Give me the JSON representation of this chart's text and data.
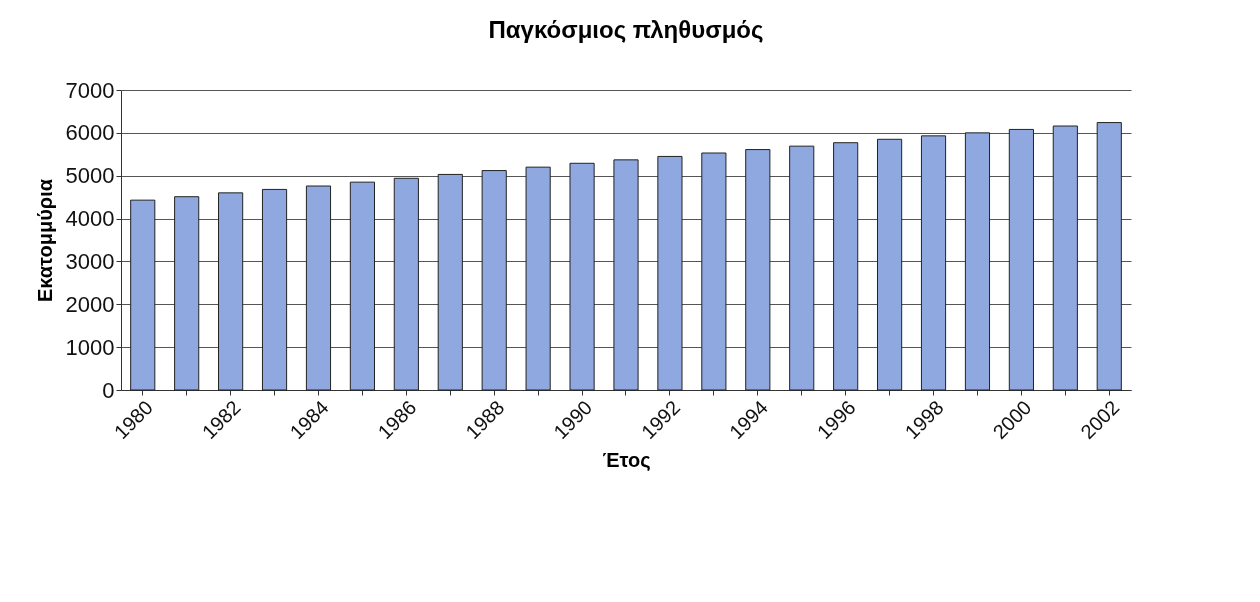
{
  "chart_data": {
    "type": "bar",
    "title": "Παγκόσμιος πληθυσμός",
    "xlabel": "Έτος",
    "ylabel": "Εκατομμύρια",
    "categories": [
      "1980",
      null,
      "1982",
      null,
      "1984",
      null,
      "1986",
      null,
      "1988",
      null,
      "1990",
      null,
      "1992",
      null,
      "1994",
      null,
      "1996",
      null,
      "1998",
      null,
      "2000",
      null,
      "2002"
    ],
    "values": [
      4430,
      4510,
      4600,
      4680,
      4760,
      4850,
      4940,
      5030,
      5120,
      5200,
      5290,
      5370,
      5450,
      5530,
      5610,
      5690,
      5770,
      5850,
      5930,
      6000,
      6080,
      6160,
      6240
    ],
    "color": "#8fa8e0",
    "ylim": [
      0,
      7000
    ],
    "yticks": [
      0,
      1000,
      2000,
      3000,
      4000,
      5000,
      6000,
      7000
    ],
    "grid": "y"
  }
}
